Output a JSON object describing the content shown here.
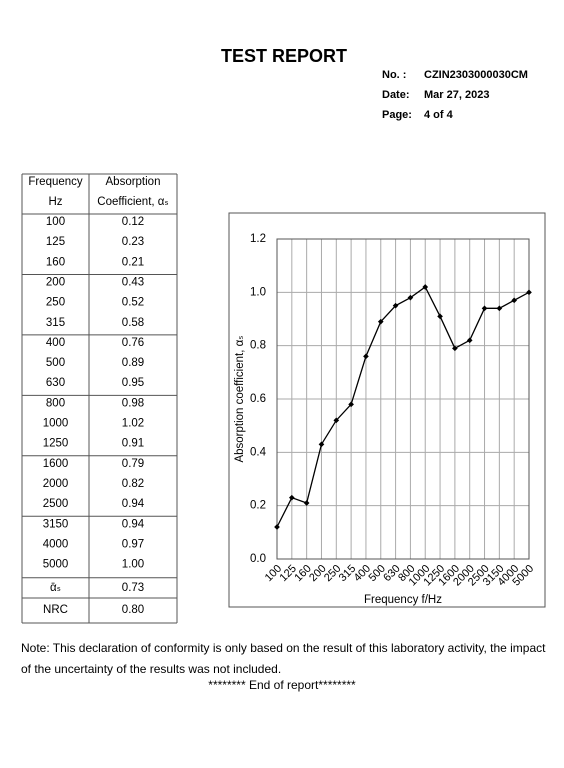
{
  "header": {
    "title": "TEST REPORT",
    "fields": [
      [
        "No.  :",
        "CZIN2303000030CM"
      ],
      [
        "Date:",
        "Mar 27, 2023"
      ],
      [
        "Page:",
        "4 of  4"
      ]
    ]
  },
  "table": {
    "header": [
      [
        "Frequency",
        "Absorption"
      ],
      [
        "Hz",
        "Coefficient, αₛ"
      ]
    ],
    "rows": [
      [
        "100",
        "0.12"
      ],
      [
        "125",
        "0.23"
      ],
      [
        "160",
        "0.21"
      ],
      [
        "200",
        "0.43"
      ],
      [
        "250",
        "0.52"
      ],
      [
        "315",
        "0.58"
      ],
      [
        "400",
        "0.76"
      ],
      [
        "500",
        "0.89"
      ],
      [
        "630",
        "0.95"
      ],
      [
        "800",
        "0.98"
      ],
      [
        "1000",
        "1.02"
      ],
      [
        "1250",
        "0.91"
      ],
      [
        "1600",
        "0.79"
      ],
      [
        "2000",
        "0.82"
      ],
      [
        "2500",
        "0.94"
      ],
      [
        "3150",
        "0.94"
      ],
      [
        "4000",
        "0.97"
      ],
      [
        "5000",
        "1.00"
      ]
    ],
    "summary": [
      [
        "ᾱₛ",
        "0.73"
      ],
      [
        "NRC",
        "0.80"
      ]
    ]
  },
  "chart_data": {
    "type": "line",
    "x_label": "Frequency f/Hz",
    "y_label": "Absorption coefficient, αₛ",
    "categories": [
      "100",
      "125",
      "160",
      "200",
      "250",
      "315",
      "400",
      "500",
      "630",
      "800",
      "1000",
      "1250",
      "1600",
      "2000",
      "2500",
      "3150",
      "4000",
      "5000"
    ],
    "values": [
      0.12,
      0.23,
      0.21,
      0.43,
      0.52,
      0.58,
      0.76,
      0.89,
      0.95,
      0.98,
      1.02,
      0.91,
      0.79,
      0.82,
      0.94,
      0.94,
      0.97,
      1.0
    ],
    "color": "#000000",
    "ylim": [
      0,
      1.2
    ],
    "yticks": [
      {
        "value": 0,
        "label": "0.0"
      },
      0.2,
      0.4,
      0.6,
      0.8,
      {
        "value": 1,
        "label": "1.0"
      },
      1.2
    ],
    "grid": true
  },
  "note": "Note: This declaration of conformity is only based on the result of this laboratory activity, the impact of the uncertainty of the results was not included.",
  "end": "******** End of report********"
}
